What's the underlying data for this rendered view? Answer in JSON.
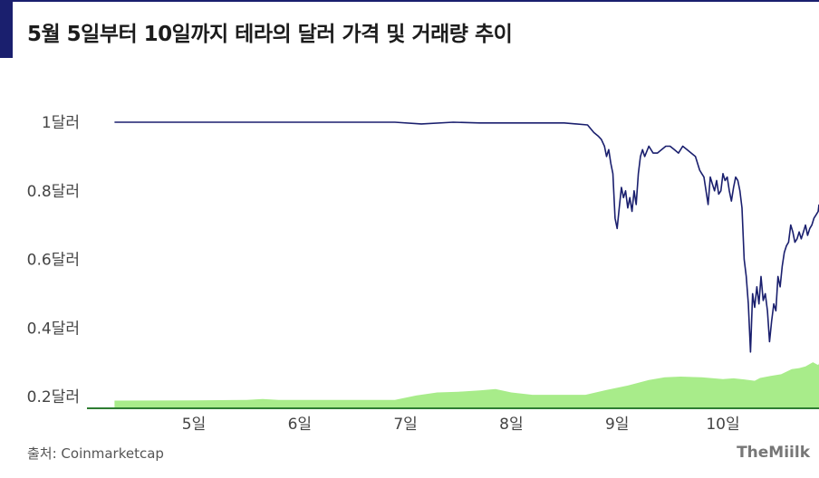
{
  "title": "5월 5일부터 10일까지 테라의 달러 가격 및 거래량 추이",
  "source": "출처: Coinmarketcap",
  "brand": "TheMiilk",
  "colors": {
    "accent": "#1a1f6e",
    "price_line": "#1a1f6e",
    "volume_fill": "#a8ec8a",
    "volume_line": "#2e7d32"
  },
  "chart_data": {
    "type": "line",
    "title": "",
    "xlabel": "",
    "ylabel": "",
    "ylim": [
      0.17,
      1.03
    ],
    "xlim": [
      4.25,
      10.92
    ],
    "y_ticks": [
      {
        "value": 1.0,
        "label": "1달러"
      },
      {
        "value": 0.8,
        "label": "0.8달러"
      },
      {
        "value": 0.6,
        "label": "0.6달러"
      },
      {
        "value": 0.4,
        "label": "0.4달러"
      },
      {
        "value": 0.2,
        "label": "0.2달러"
      }
    ],
    "x_ticks": [
      {
        "value": 5,
        "label": "5일"
      },
      {
        "value": 6,
        "label": "6일"
      },
      {
        "value": 7,
        "label": "7일"
      },
      {
        "value": 8,
        "label": "8일"
      },
      {
        "value": 9,
        "label": "9일"
      },
      {
        "value": 10,
        "label": "10일"
      }
    ],
    "series": [
      {
        "kind": "price",
        "x": [
          4.25,
          5.0,
          6.0,
          6.9,
          7.15,
          7.45,
          7.7,
          8.0,
          8.5,
          8.72,
          8.78,
          8.82,
          8.85,
          8.88,
          8.9,
          8.92,
          8.94,
          8.96,
          8.98,
          9.0,
          9.02,
          9.04,
          9.06,
          9.08,
          9.1,
          9.12,
          9.14,
          9.16,
          9.18,
          9.2,
          9.22,
          9.24,
          9.26,
          9.3,
          9.34,
          9.38,
          9.42,
          9.46,
          9.5,
          9.54,
          9.58,
          9.62,
          9.66,
          9.7,
          9.74,
          9.78,
          9.8,
          9.82,
          9.84,
          9.86,
          9.88,
          9.9,
          9.92,
          9.94,
          9.96,
          9.98,
          10.0,
          10.02,
          10.04,
          10.06,
          10.08,
          10.1,
          10.12,
          10.14,
          10.16,
          10.18,
          10.2,
          10.22,
          10.24,
          10.26,
          10.28,
          10.3,
          10.32,
          10.34,
          10.36,
          10.38,
          10.4,
          10.42,
          10.44,
          10.46,
          10.48,
          10.5,
          10.52,
          10.54,
          10.56,
          10.58,
          10.6,
          10.62,
          10.64,
          10.66,
          10.68,
          10.7,
          10.72,
          10.74,
          10.76,
          10.78,
          10.8,
          10.82,
          10.84,
          10.86,
          10.88,
          10.9,
          10.92
        ],
        "values": [
          1.0,
          1.0,
          1.0,
          1.0,
          0.995,
          1.0,
          0.998,
          0.998,
          0.998,
          0.992,
          0.97,
          0.96,
          0.95,
          0.93,
          0.9,
          0.92,
          0.88,
          0.85,
          0.72,
          0.69,
          0.75,
          0.81,
          0.78,
          0.8,
          0.75,
          0.78,
          0.74,
          0.8,
          0.76,
          0.85,
          0.9,
          0.92,
          0.9,
          0.93,
          0.91,
          0.91,
          0.92,
          0.93,
          0.93,
          0.92,
          0.91,
          0.93,
          0.92,
          0.91,
          0.9,
          0.86,
          0.85,
          0.84,
          0.8,
          0.76,
          0.84,
          0.82,
          0.8,
          0.83,
          0.79,
          0.8,
          0.85,
          0.83,
          0.84,
          0.8,
          0.77,
          0.81,
          0.84,
          0.83,
          0.8,
          0.75,
          0.6,
          0.55,
          0.47,
          0.33,
          0.5,
          0.46,
          0.52,
          0.47,
          0.55,
          0.48,
          0.5,
          0.45,
          0.36,
          0.42,
          0.47,
          0.45,
          0.55,
          0.52,
          0.58,
          0.62,
          0.64,
          0.65,
          0.7,
          0.68,
          0.65,
          0.66,
          0.68,
          0.66,
          0.68,
          0.7,
          0.67,
          0.69,
          0.7,
          0.72,
          0.73,
          0.74,
          0.76
        ]
      },
      {
        "kind": "volume",
        "x": [
          4.25,
          5.0,
          5.5,
          5.65,
          5.8,
          6.0,
          6.5,
          6.9,
          7.1,
          7.3,
          7.5,
          7.7,
          7.85,
          8.0,
          8.2,
          8.5,
          8.7,
          8.9,
          9.1,
          9.3,
          9.45,
          9.6,
          9.8,
          10.0,
          10.1,
          10.2,
          10.3,
          10.35,
          10.45,
          10.55,
          10.65,
          10.72,
          10.78,
          10.85,
          10.9,
          10.92
        ],
        "values": [
          0.188,
          0.189,
          0.19,
          0.193,
          0.19,
          0.19,
          0.19,
          0.19,
          0.203,
          0.212,
          0.214,
          0.218,
          0.222,
          0.212,
          0.205,
          0.205,
          0.205,
          0.219,
          0.232,
          0.248,
          0.256,
          0.258,
          0.256,
          0.251,
          0.253,
          0.25,
          0.246,
          0.254,
          0.26,
          0.265,
          0.28,
          0.283,
          0.288,
          0.3,
          0.292,
          0.296
        ]
      }
    ],
    "grid": false,
    "legend": "none"
  }
}
